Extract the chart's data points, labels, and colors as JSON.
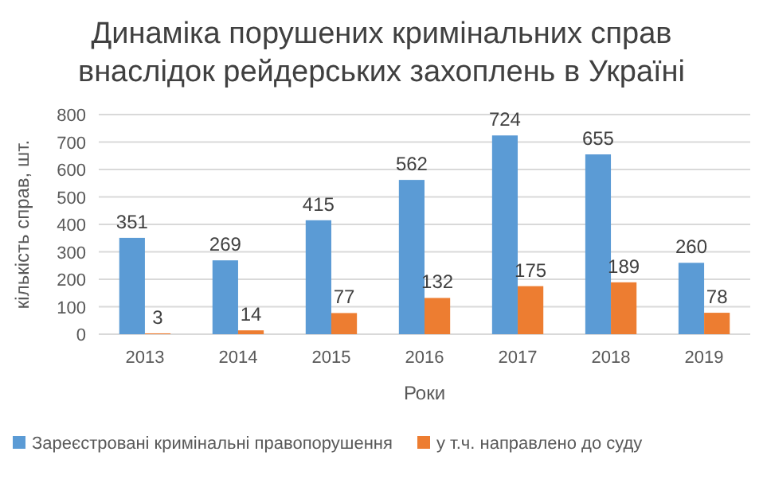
{
  "chart_data": {
    "type": "bar",
    "title": "Динаміка порушених кримінальних справ внаслідок рейдерських захоплень в Україні",
    "xlabel": "Роки",
    "ylabel": "кількість справ, шт.",
    "categories": [
      "2013",
      "2014",
      "2015",
      "2016",
      "2017",
      "2018",
      "2019"
    ],
    "series": [
      {
        "name": "Зареєстровані кримінальні правопорушення",
        "color": "#5b9bd5",
        "values": [
          351,
          269,
          415,
          562,
          724,
          655,
          260
        ]
      },
      {
        "name": "у т.ч. направлено до суду",
        "color": "#ed7d31",
        "values": [
          3,
          14,
          77,
          132,
          175,
          189,
          78
        ]
      }
    ],
    "ylim": [
      0,
      800
    ],
    "yticks": [
      0,
      100,
      200,
      300,
      400,
      500,
      600,
      700,
      800
    ],
    "grid": "y",
    "legend": "bottom",
    "data_labels": true
  }
}
